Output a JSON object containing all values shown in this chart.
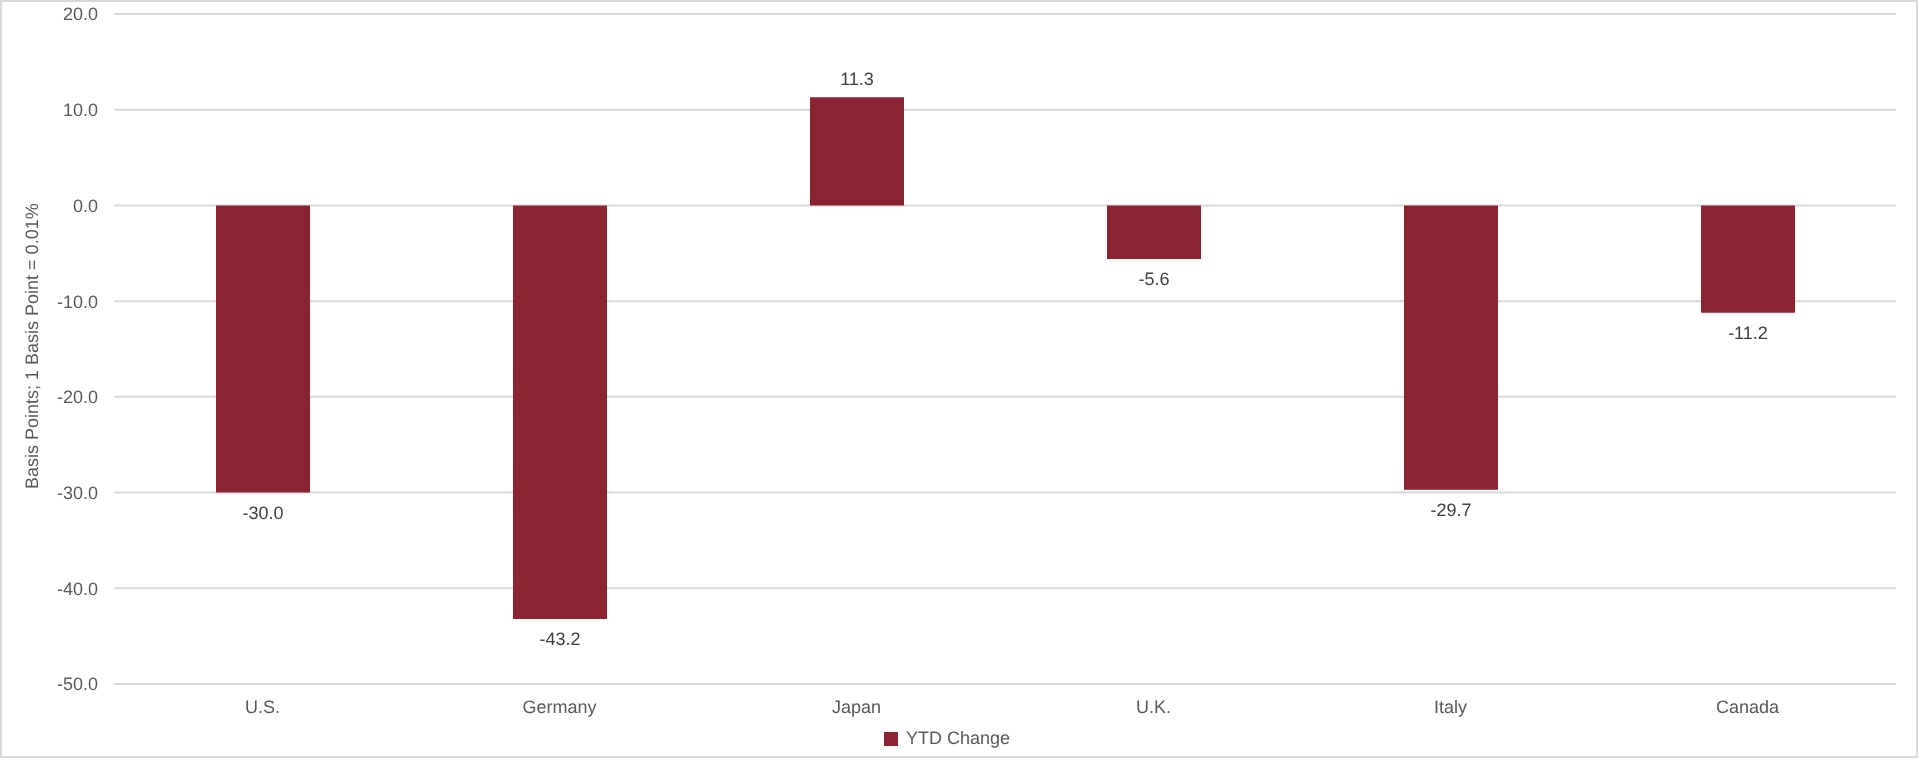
{
  "chart_data": {
    "type": "bar",
    "ylabel": "Basis Points; 1 Basis Point = 0.01%",
    "categories": [
      "U.S.",
      "Germany",
      "Japan",
      "U.K.",
      "Italy",
      "Canada"
    ],
    "series": [
      {
        "name": "YTD Change",
        "color": "#8b2332",
        "values": [
          -30.0,
          -43.2,
          11.3,
          -5.6,
          -29.7,
          -11.2
        ],
        "value_labels": [
          "-30.0",
          "-43.2",
          "11.3",
          "-5.6",
          "-29.7",
          "-11.2"
        ]
      }
    ],
    "ylim": [
      -50,
      20
    ],
    "yticks": [
      {
        "value": -50,
        "label": "-50.0"
      },
      {
        "value": -40,
        "label": "-40.0"
      },
      {
        "value": -30,
        "label": "-30.0"
      },
      {
        "value": -20,
        "label": "-20.0"
      },
      {
        "value": -10,
        "label": "-10.0"
      },
      {
        "value": 0,
        "label": "0.0"
      },
      {
        "value": 10,
        "label": "10.0"
      },
      {
        "value": 20,
        "label": "20.0"
      }
    ],
    "grid": "y",
    "legend": "bottom"
  }
}
